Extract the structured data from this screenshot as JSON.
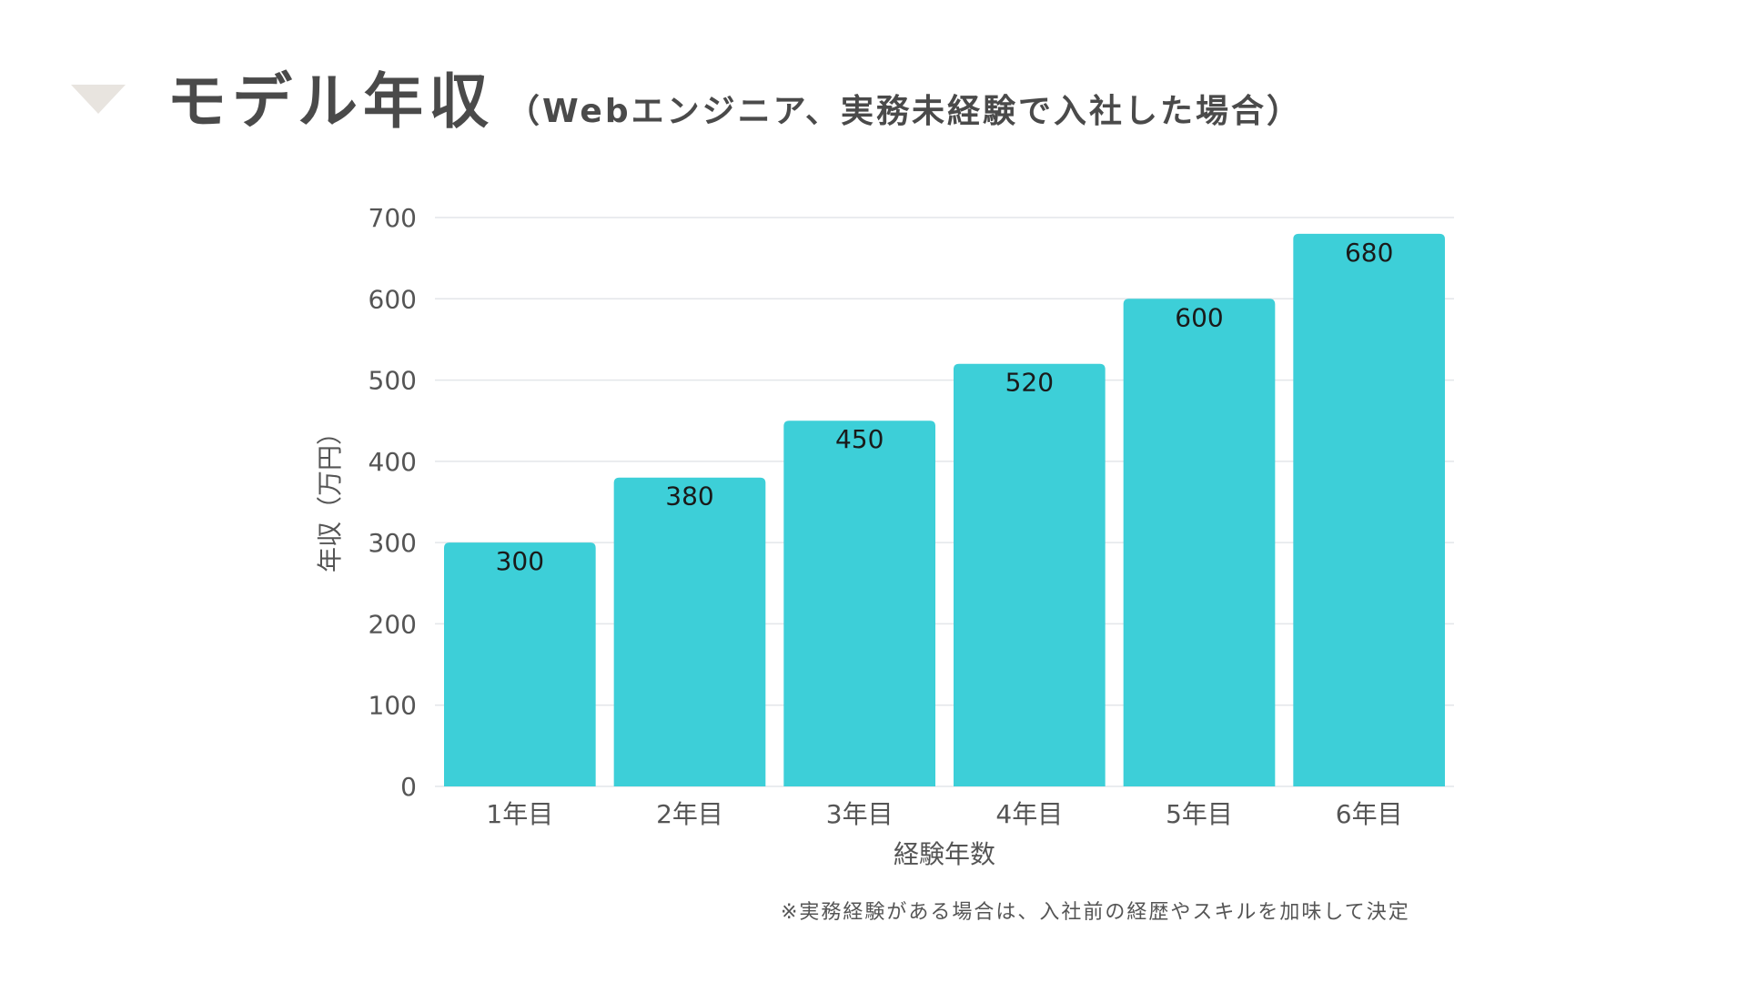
{
  "title": {
    "main": "モデル年収",
    "sub": "（Webエンジニア、実務未経験で入社した場合）"
  },
  "chart_data": {
    "type": "bar",
    "categories": [
      "1年目",
      "2年目",
      "3年目",
      "4年目",
      "5年目",
      "6年目"
    ],
    "values": [
      300,
      380,
      450,
      520,
      600,
      680
    ],
    "data_labels": [
      "300",
      "380",
      "450",
      "520",
      "600",
      "680"
    ],
    "xlabel": "経験年数",
    "ylabel": "年収（万円）",
    "ylim": [
      0,
      700
    ],
    "yticks": [
      0,
      100,
      200,
      300,
      400,
      500,
      600,
      700
    ],
    "ytick_labels": [
      "0",
      "100",
      "200",
      "300",
      "400",
      "500",
      "600",
      "700"
    ],
    "grid": true,
    "bar_color": "#3dcfd8",
    "grid_color": "#e3e6ea",
    "text_color": "#555555"
  },
  "footnote": "※実務経験がある場合は、入社前の経歴やスキルを加味して決定",
  "colors": {
    "title": "#4a4a4a",
    "marker": "#e8e4df",
    "background": "#ffffff"
  }
}
